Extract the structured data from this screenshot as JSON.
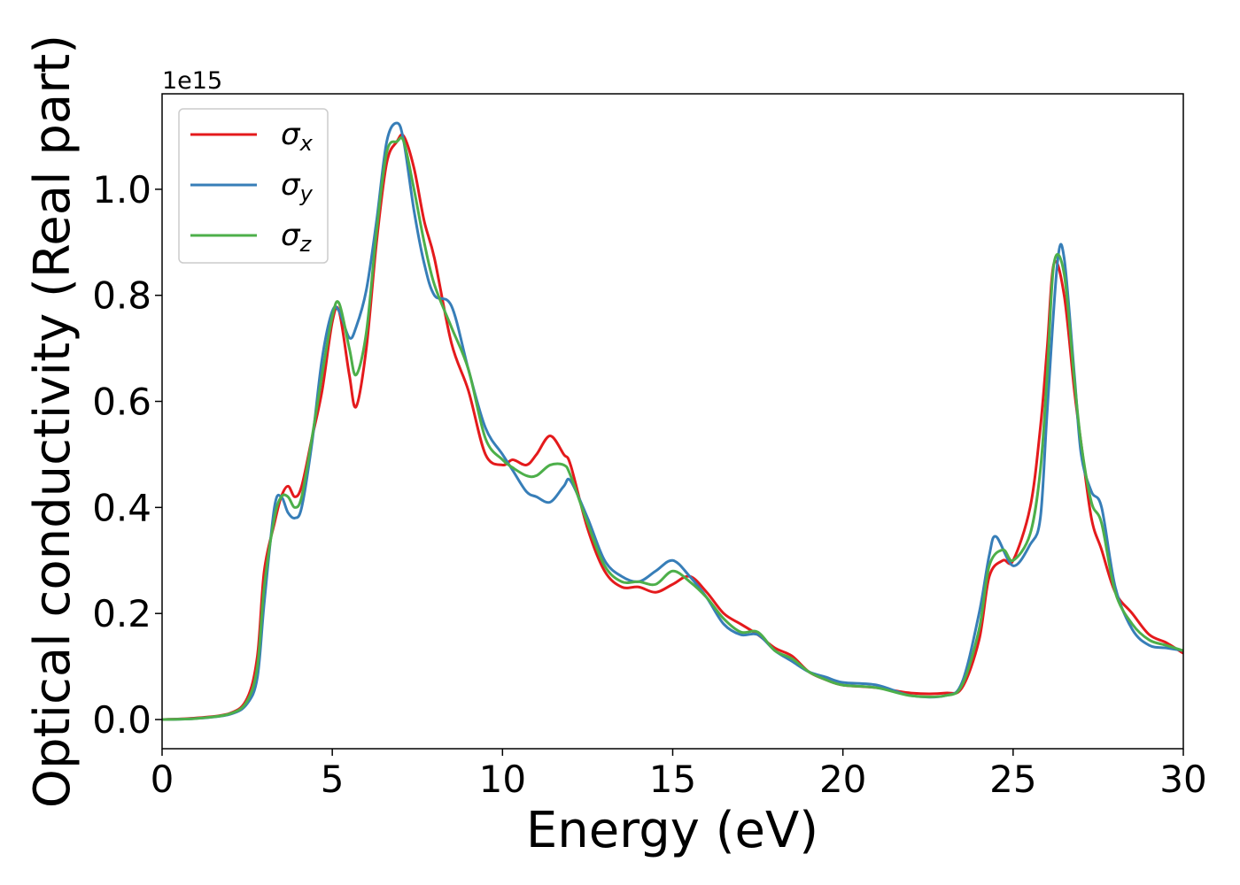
{
  "chart_data": {
    "type": "line",
    "xlabel": "Energy (eV)",
    "ylabel": "Optical conductivity (Real part)",
    "y_offset_label": "1e15",
    "xlim": [
      0,
      30
    ],
    "ylim": [
      -0.055,
      1.18
    ],
    "x_ticks": [
      0,
      5,
      10,
      15,
      20,
      25,
      30
    ],
    "x_tick_labels": [
      "0",
      "5",
      "10",
      "15",
      "20",
      "25",
      "30"
    ],
    "y_ticks": [
      0.0,
      0.2,
      0.4,
      0.6,
      0.8,
      1.0
    ],
    "y_tick_labels": [
      "0.0",
      "0.2",
      "0.4",
      "0.6",
      "0.8",
      "1.0"
    ],
    "grid": false,
    "legend_position": "top-left",
    "series": [
      {
        "name": "σx",
        "symbol": "σ",
        "subscript": "x",
        "color": "#e41a1c",
        "x": [
          0,
          1,
          2,
          2.5,
          2.8,
          3.0,
          3.3,
          3.5,
          3.7,
          3.9,
          4.1,
          4.4,
          4.7,
          5.0,
          5.2,
          5.5,
          5.7,
          6.0,
          6.3,
          6.6,
          6.9,
          7.1,
          7.4,
          7.7,
          8.0,
          8.5,
          9.0,
          9.5,
          10.0,
          10.3,
          10.7,
          11.0,
          11.4,
          11.8,
          12.0,
          12.5,
          13.0,
          13.5,
          14.0,
          14.5,
          15.0,
          15.5,
          16.0,
          16.5,
          17.0,
          17.5,
          18.0,
          18.5,
          19.0,
          19.5,
          20.0,
          21.0,
          22.0,
          23.0,
          23.5,
          24.0,
          24.3,
          24.7,
          25.0,
          25.5,
          25.8,
          26.0,
          26.2,
          26.5,
          26.8,
          27.0,
          27.3,
          27.6,
          28.0,
          28.5,
          29.0,
          29.5,
          30.0
        ],
        "y": [
          0.0,
          0.003,
          0.012,
          0.04,
          0.12,
          0.28,
          0.37,
          0.42,
          0.44,
          0.42,
          0.44,
          0.53,
          0.62,
          0.75,
          0.77,
          0.65,
          0.59,
          0.7,
          0.9,
          1.05,
          1.09,
          1.1,
          1.04,
          0.94,
          0.87,
          0.71,
          0.62,
          0.5,
          0.48,
          0.49,
          0.48,
          0.5,
          0.535,
          0.5,
          0.48,
          0.36,
          0.28,
          0.25,
          0.25,
          0.24,
          0.255,
          0.27,
          0.24,
          0.2,
          0.18,
          0.16,
          0.135,
          0.12,
          0.09,
          0.075,
          0.065,
          0.06,
          0.05,
          0.05,
          0.06,
          0.15,
          0.27,
          0.3,
          0.3,
          0.4,
          0.55,
          0.7,
          0.86,
          0.8,
          0.62,
          0.52,
          0.38,
          0.32,
          0.24,
          0.2,
          0.16,
          0.145,
          0.125
        ]
      },
      {
        "name": "σy",
        "symbol": "σ",
        "subscript": "y",
        "color": "#377eb8",
        "x": [
          0,
          1,
          2,
          2.5,
          2.8,
          3.0,
          3.3,
          3.5,
          3.7,
          3.9,
          4.1,
          4.4,
          4.7,
          5.0,
          5.2,
          5.5,
          5.7,
          6.0,
          6.3,
          6.6,
          6.9,
          7.1,
          7.4,
          7.7,
          8.0,
          8.5,
          9.0,
          9.5,
          10.0,
          10.3,
          10.7,
          11.0,
          11.4,
          11.8,
          12.0,
          12.5,
          13.0,
          13.5,
          14.0,
          14.5,
          15.0,
          15.5,
          16.0,
          16.5,
          17.0,
          17.5,
          18.0,
          18.5,
          19.0,
          19.5,
          20.0,
          21.0,
          22.0,
          23.0,
          23.5,
          24.0,
          24.3,
          24.5,
          25.0,
          25.5,
          25.8,
          26.0,
          26.3,
          26.5,
          26.8,
          27.0,
          27.3,
          27.6,
          28.0,
          28.5,
          29.0,
          29.5,
          30.0
        ],
        "y": [
          0.0,
          0.002,
          0.01,
          0.03,
          0.08,
          0.22,
          0.4,
          0.42,
          0.39,
          0.38,
          0.4,
          0.52,
          0.68,
          0.77,
          0.77,
          0.72,
          0.74,
          0.81,
          0.94,
          1.09,
          1.125,
          1.09,
          0.96,
          0.86,
          0.8,
          0.78,
          0.66,
          0.55,
          0.5,
          0.47,
          0.43,
          0.42,
          0.41,
          0.44,
          0.45,
          0.38,
          0.3,
          0.27,
          0.26,
          0.28,
          0.3,
          0.27,
          0.23,
          0.18,
          0.16,
          0.16,
          0.13,
          0.11,
          0.09,
          0.08,
          0.07,
          0.065,
          0.045,
          0.045,
          0.07,
          0.2,
          0.31,
          0.345,
          0.29,
          0.33,
          0.38,
          0.58,
          0.86,
          0.87,
          0.65,
          0.5,
          0.43,
          0.4,
          0.25,
          0.17,
          0.14,
          0.135,
          0.13
        ]
      },
      {
        "name": "σz",
        "symbol": "σ",
        "subscript": "z",
        "color": "#4daf4a",
        "x": [
          0,
          1,
          2,
          2.5,
          2.8,
          3.0,
          3.3,
          3.5,
          3.7,
          3.9,
          4.1,
          4.4,
          4.7,
          5.0,
          5.2,
          5.5,
          5.7,
          6.0,
          6.3,
          6.6,
          6.9,
          7.1,
          7.4,
          7.7,
          8.0,
          8.5,
          9.0,
          9.5,
          10.0,
          10.3,
          10.7,
          11.0,
          11.4,
          11.8,
          12.0,
          12.5,
          13.0,
          13.5,
          14.0,
          14.5,
          15.0,
          15.5,
          16.0,
          16.5,
          17.0,
          17.5,
          18.0,
          18.5,
          19.0,
          19.5,
          20.0,
          21.0,
          22.0,
          23.0,
          23.5,
          24.0,
          24.3,
          24.7,
          25.0,
          25.5,
          25.8,
          26.0,
          26.2,
          26.5,
          26.8,
          27.0,
          27.3,
          27.6,
          28.0,
          28.5,
          29.0,
          29.5,
          30.0
        ],
        "y": [
          0.0,
          0.002,
          0.011,
          0.035,
          0.1,
          0.25,
          0.38,
          0.42,
          0.42,
          0.4,
          0.42,
          0.53,
          0.65,
          0.76,
          0.785,
          0.7,
          0.65,
          0.73,
          0.92,
          1.07,
          1.09,
          1.09,
          1.0,
          0.9,
          0.82,
          0.74,
          0.66,
          0.53,
          0.49,
          0.475,
          0.46,
          0.46,
          0.48,
          0.48,
          0.46,
          0.37,
          0.29,
          0.26,
          0.26,
          0.255,
          0.28,
          0.26,
          0.23,
          0.19,
          0.165,
          0.165,
          0.13,
          0.115,
          0.09,
          0.075,
          0.065,
          0.06,
          0.045,
          0.045,
          0.065,
          0.17,
          0.29,
          0.32,
          0.3,
          0.35,
          0.47,
          0.65,
          0.86,
          0.84,
          0.64,
          0.52,
          0.41,
          0.37,
          0.24,
          0.18,
          0.15,
          0.14,
          0.13
        ]
      }
    ]
  }
}
